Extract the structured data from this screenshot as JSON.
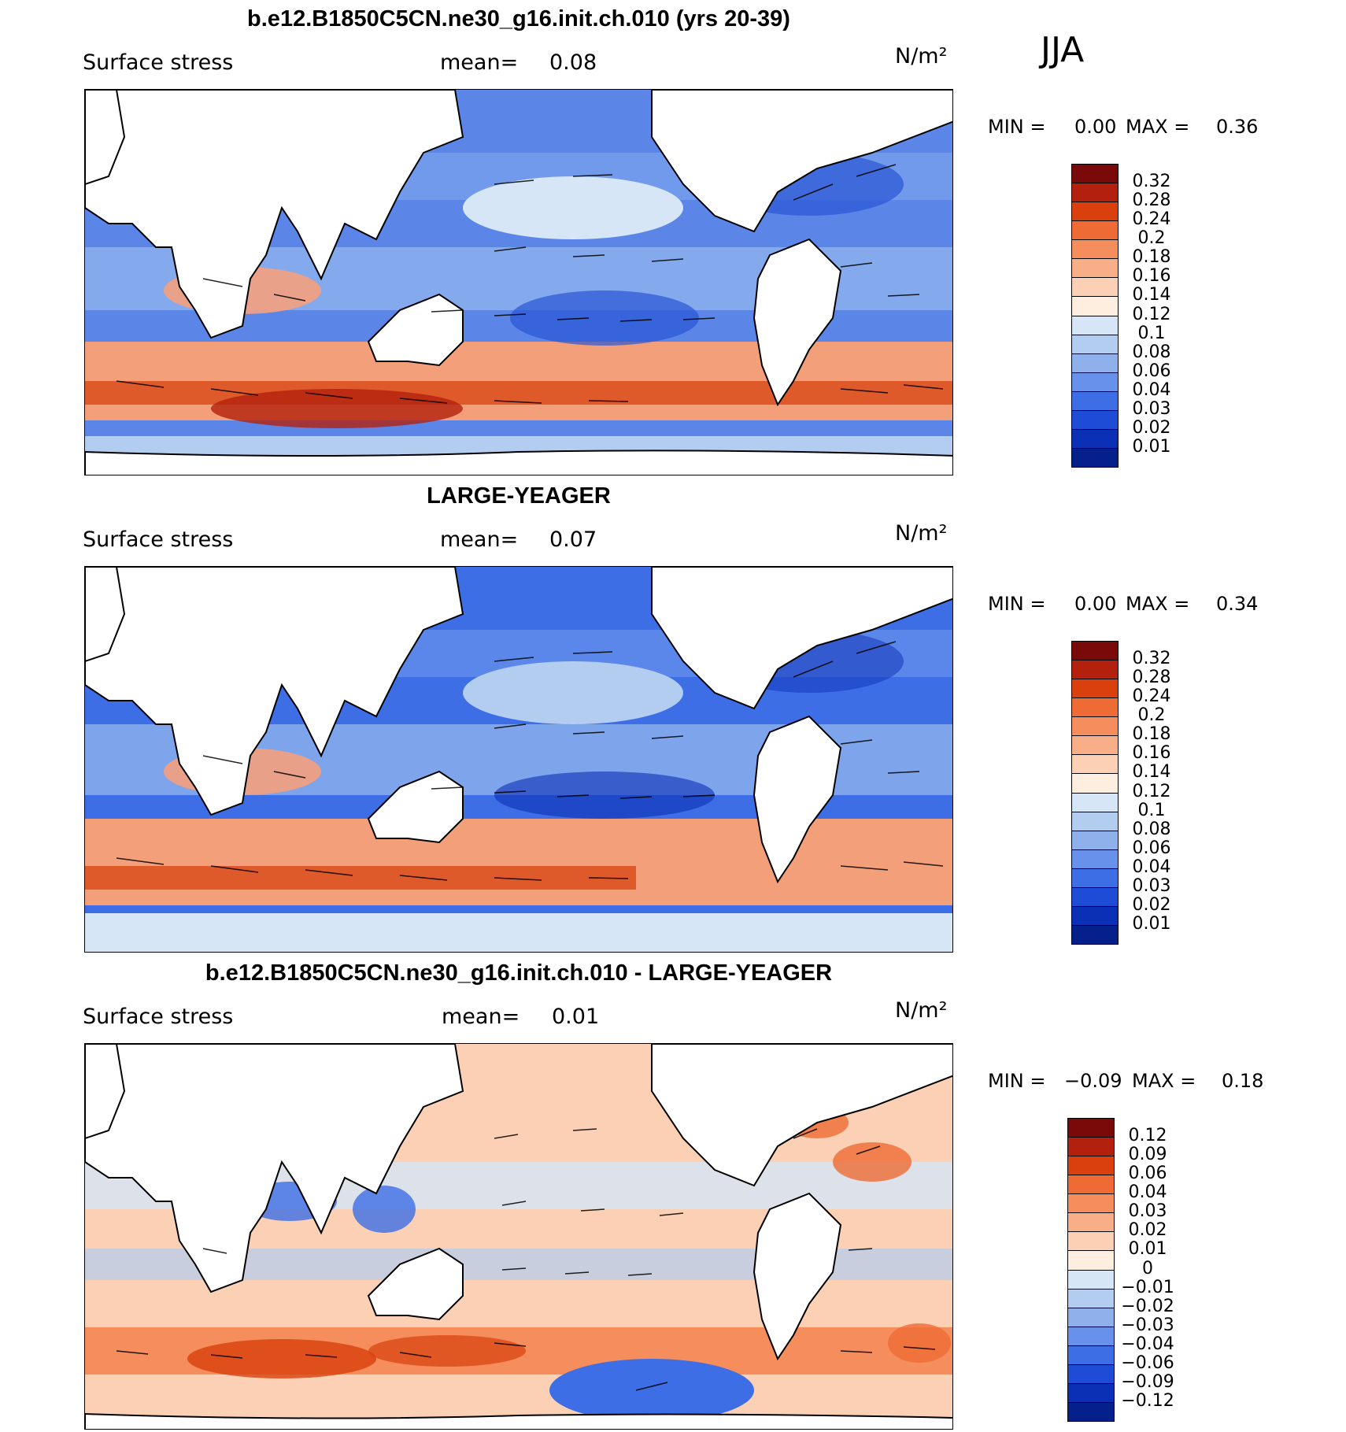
{
  "season": "JJA",
  "panels": [
    {
      "title": "b.e12.B1850C5CN.ne30_g16.init.ch.010 (yrs 20-39)",
      "variable": "Surface stress",
      "mean_label": "mean=",
      "mean_value": "0.08",
      "units": "N/m²",
      "min_label": "MIN =",
      "min_value": "0.00",
      "max_label": "MAX =",
      "max_value": "0.36",
      "colorbar_ticks": [
        "0.32",
        "0.28",
        "0.24",
        "0.2",
        "0.18",
        "0.16",
        "0.14",
        "0.12",
        "0.1",
        "0.08",
        "0.06",
        "0.04",
        "0.03",
        "0.02",
        "0.01"
      ],
      "colorbar_colors": [
        "#7a0a0a",
        "#b3200d",
        "#d9400d",
        "#ef6b35",
        "#f58d5c",
        "#f8ae87",
        "#fbd0b4",
        "#fdeee0",
        "#d6e6f7",
        "#b3cdf0",
        "#8eb1ec",
        "#6791ea",
        "#3d6ee6",
        "#1e4cd6",
        "#0b2fb5",
        "#05208a"
      ]
    },
    {
      "title": "LARGE-YEAGER",
      "variable": "Surface stress",
      "mean_label": "mean=",
      "mean_value": "0.07",
      "units": "N/m²",
      "min_label": "MIN =",
      "min_value": "0.00",
      "max_label": "MAX =",
      "max_value": "0.34",
      "colorbar_ticks": [
        "0.32",
        "0.28",
        "0.24",
        "0.2",
        "0.18",
        "0.16",
        "0.14",
        "0.12",
        "0.1",
        "0.08",
        "0.06",
        "0.04",
        "0.03",
        "0.02",
        "0.01"
      ],
      "colorbar_colors": [
        "#7a0a0a",
        "#b3200d",
        "#d9400d",
        "#ef6b35",
        "#f58d5c",
        "#f8ae87",
        "#fbd0b4",
        "#fdeee0",
        "#d6e6f7",
        "#b3cdf0",
        "#8eb1ec",
        "#6791ea",
        "#3d6ee6",
        "#1e4cd6",
        "#0b2fb5",
        "#05208a"
      ]
    },
    {
      "title": "b.e12.B1850C5CN.ne30_g16.init.ch.010 - LARGE-YEAGER",
      "variable": "Surface stress",
      "mean_label": "mean=",
      "mean_value": "0.01",
      "units": "N/m²",
      "min_label": "MIN =",
      "min_value": "−0.09",
      "max_label": "MAX =",
      "max_value": "0.18",
      "colorbar_ticks": [
        "0.12",
        "0.09",
        "0.06",
        "0.04",
        "0.03",
        "0.02",
        "0.01",
        "0",
        "−0.01",
        "−0.02",
        "−0.03",
        "−0.04",
        "−0.06",
        "−0.09",
        "−0.12"
      ],
      "colorbar_colors": [
        "#7a0a0a",
        "#b3200d",
        "#d9400d",
        "#ef6b35",
        "#f58d5c",
        "#f8ae87",
        "#fbd0b4",
        "#fdeee0",
        "#d6e6f7",
        "#b3cdf0",
        "#8eb1ec",
        "#6791ea",
        "#3d6ee6",
        "#1e4cd6",
        "#0b2fb5",
        "#05208a"
      ]
    }
  ]
}
